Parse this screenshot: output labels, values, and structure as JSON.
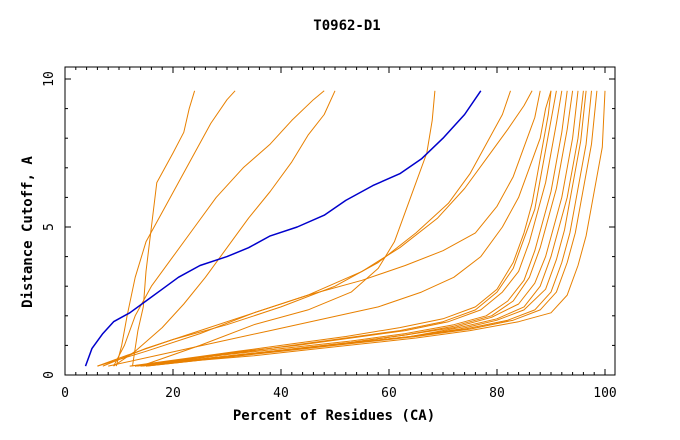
{
  "chart_data": {
    "type": "line",
    "title": "T0962-D1",
    "xlabel": "Percent of Residues (CA)",
    "ylabel": "Distance Cutoff, A",
    "xlim": [
      0,
      100
    ],
    "ylim": [
      0,
      10
    ],
    "x_ticks": [
      "0",
      "20",
      "40",
      "60",
      "80",
      "100"
    ],
    "y_ticks": [
      "0",
      "5",
      "10"
    ],
    "grid": false,
    "legend": "none",
    "colors": {
      "highlight": "#0000cc",
      "others": "#e88000"
    },
    "highlight_series": {
      "points": [
        [
          3.8,
          0.3
        ],
        [
          5,
          0.9
        ],
        [
          7,
          1.4
        ],
        [
          9,
          1.8
        ],
        [
          12,
          2.1
        ],
        [
          15,
          2.5
        ],
        [
          18,
          2.9
        ],
        [
          21,
          3.3
        ],
        [
          25,
          3.7
        ],
        [
          30,
          4.0
        ],
        [
          34,
          4.3
        ],
        [
          38,
          4.7
        ],
        [
          43,
          5.0
        ],
        [
          48,
          5.4
        ],
        [
          52,
          5.9
        ],
        [
          57,
          6.4
        ],
        [
          62,
          6.8
        ],
        [
          66,
          7.3
        ],
        [
          70,
          8.0
        ],
        [
          74,
          8.8
        ],
        [
          77,
          9.6
        ]
      ]
    },
    "series": [
      {
        "points": [
          [
            12.5,
            0.3
          ],
          [
            13.5,
            1.5
          ],
          [
            14.5,
            2.3
          ],
          [
            15,
            3.5
          ],
          [
            16,
            5.0
          ],
          [
            17,
            6.5
          ],
          [
            20,
            7.5
          ],
          [
            22,
            8.2
          ],
          [
            23,
            9.0
          ],
          [
            24,
            9.6
          ]
        ]
      },
      {
        "points": [
          [
            9.5,
            0.3
          ],
          [
            10.5,
            1.0
          ],
          [
            11.5,
            2.0
          ],
          [
            13,
            3.3
          ],
          [
            15,
            4.5
          ],
          [
            18,
            5.5
          ],
          [
            21,
            6.5
          ],
          [
            24,
            7.5
          ],
          [
            27,
            8.5
          ],
          [
            30,
            9.3
          ],
          [
            31.5,
            9.6
          ]
        ]
      },
      {
        "points": [
          [
            9,
            0.3
          ],
          [
            11,
            1.0
          ],
          [
            13,
            2.0
          ],
          [
            16,
            3.0
          ],
          [
            20,
            4.0
          ],
          [
            24,
            5.0
          ],
          [
            28,
            6.0
          ],
          [
            33,
            7.0
          ],
          [
            38,
            7.8
          ],
          [
            42,
            8.6
          ],
          [
            46,
            9.3
          ],
          [
            48,
            9.6
          ]
        ]
      },
      {
        "points": [
          [
            9,
            0.3
          ],
          [
            13,
            0.8
          ],
          [
            18,
            1.6
          ],
          [
            22,
            2.4
          ],
          [
            26,
            3.3
          ],
          [
            30,
            4.3
          ],
          [
            34,
            5.3
          ],
          [
            38,
            6.2
          ],
          [
            42,
            7.2
          ],
          [
            45,
            8.1
          ],
          [
            48,
            8.8
          ],
          [
            50,
            9.6
          ]
        ]
      },
      {
        "points": [
          [
            14,
            0.3
          ],
          [
            25,
            1.0
          ],
          [
            35,
            1.7
          ],
          [
            45,
            2.2
          ],
          [
            53,
            2.8
          ],
          [
            58,
            3.6
          ],
          [
            61,
            4.5
          ],
          [
            63,
            5.5
          ],
          [
            65,
            6.5
          ],
          [
            67,
            7.5
          ],
          [
            68,
            8.6
          ],
          [
            68.5,
            9.6
          ]
        ]
      },
      {
        "points": [
          [
            6,
            0.3
          ],
          [
            12,
            0.7
          ],
          [
            20,
            1.2
          ],
          [
            30,
            1.7
          ],
          [
            40,
            2.3
          ],
          [
            50,
            3.0
          ],
          [
            58,
            3.8
          ],
          [
            65,
            4.8
          ],
          [
            71,
            5.8
          ],
          [
            75,
            6.8
          ],
          [
            78,
            7.8
          ],
          [
            81,
            8.8
          ],
          [
            82.5,
            9.6
          ]
        ]
      },
      {
        "points": [
          [
            6,
            0.3
          ],
          [
            15,
            0.8
          ],
          [
            25,
            1.4
          ],
          [
            35,
            2.1
          ],
          [
            45,
            2.7
          ],
          [
            55,
            3.5
          ],
          [
            62,
            4.3
          ],
          [
            69,
            5.3
          ],
          [
            74,
            6.3
          ],
          [
            78,
            7.3
          ],
          [
            82,
            8.3
          ],
          [
            85,
            9.1
          ],
          [
            86.5,
            9.6
          ]
        ]
      },
      {
        "points": [
          [
            7,
            0.3
          ],
          [
            15,
            0.9
          ],
          [
            25,
            1.5
          ],
          [
            35,
            2.1
          ],
          [
            45,
            2.7
          ],
          [
            55,
            3.2
          ],
          [
            63,
            3.7
          ],
          [
            70,
            4.2
          ],
          [
            76,
            4.8
          ],
          [
            80,
            5.7
          ],
          [
            83,
            6.7
          ],
          [
            85,
            7.7
          ],
          [
            87,
            8.7
          ],
          [
            88,
            9.6
          ]
        ]
      },
      {
        "points": [
          [
            8,
            0.3
          ],
          [
            18,
            0.7
          ],
          [
            28,
            1.1
          ],
          [
            38,
            1.5
          ],
          [
            48,
            1.9
          ],
          [
            58,
            2.3
          ],
          [
            66,
            2.8
          ],
          [
            72,
            3.3
          ],
          [
            77,
            4.0
          ],
          [
            81,
            5.0
          ],
          [
            84,
            6.0
          ],
          [
            86,
            7.0
          ],
          [
            88,
            8.0
          ],
          [
            89,
            9.0
          ],
          [
            90,
            9.6
          ]
        ]
      },
      {
        "points": [
          [
            12,
            0.3
          ],
          [
            22,
            0.55
          ],
          [
            32,
            0.8
          ],
          [
            42,
            1.05
          ],
          [
            52,
            1.3
          ],
          [
            62,
            1.6
          ],
          [
            70,
            1.9
          ],
          [
            76,
            2.3
          ],
          [
            80,
            2.9
          ],
          [
            83,
            3.8
          ],
          [
            85,
            4.8
          ],
          [
            86.5,
            5.8
          ],
          [
            87.5,
            6.8
          ],
          [
            88.5,
            7.8
          ],
          [
            89.5,
            8.8
          ],
          [
            90,
            9.6
          ]
        ]
      },
      {
        "points": [
          [
            12,
            0.3
          ],
          [
            22,
            0.5
          ],
          [
            32,
            0.75
          ],
          [
            42,
            1.0
          ],
          [
            52,
            1.25
          ],
          [
            62,
            1.5
          ],
          [
            70,
            1.8
          ],
          [
            76,
            2.2
          ],
          [
            80,
            2.8
          ],
          [
            83,
            3.6
          ],
          [
            85,
            4.6
          ],
          [
            87,
            5.6
          ],
          [
            88,
            6.6
          ],
          [
            89,
            7.6
          ],
          [
            90,
            8.6
          ],
          [
            91,
            9.6
          ]
        ]
      },
      {
        "points": [
          [
            13,
            0.3
          ],
          [
            23,
            0.55
          ],
          [
            33,
            0.8
          ],
          [
            43,
            1.0
          ],
          [
            53,
            1.25
          ],
          [
            63,
            1.5
          ],
          [
            71,
            1.8
          ],
          [
            77,
            2.2
          ],
          [
            81,
            2.8
          ],
          [
            84,
            3.5
          ],
          [
            86,
            4.5
          ],
          [
            87.5,
            5.5
          ],
          [
            89,
            6.5
          ],
          [
            90,
            7.5
          ],
          [
            91,
            8.5
          ],
          [
            92,
            9.6
          ]
        ]
      },
      {
        "points": [
          [
            13,
            0.3
          ],
          [
            23,
            0.55
          ],
          [
            33,
            0.75
          ],
          [
            43,
            0.95
          ],
          [
            53,
            1.15
          ],
          [
            63,
            1.4
          ],
          [
            72,
            1.7
          ],
          [
            78,
            2.0
          ],
          [
            82,
            2.5
          ],
          [
            85,
            3.2
          ],
          [
            87,
            4.2
          ],
          [
            88.5,
            5.2
          ],
          [
            90,
            6.2
          ],
          [
            91,
            7.2
          ],
          [
            92,
            8.2
          ],
          [
            93,
            9.6
          ]
        ]
      },
      {
        "points": [
          [
            13,
            0.3
          ],
          [
            23,
            0.5
          ],
          [
            33,
            0.7
          ],
          [
            43,
            0.9
          ],
          [
            53,
            1.1
          ],
          [
            63,
            1.35
          ],
          [
            72,
            1.65
          ],
          [
            79,
            2.0
          ],
          [
            83,
            2.5
          ],
          [
            86,
            3.3
          ],
          [
            88,
            4.3
          ],
          [
            89.5,
            5.3
          ],
          [
            91,
            6.3
          ],
          [
            92,
            7.3
          ],
          [
            93,
            8.3
          ],
          [
            94,
            9.6
          ]
        ]
      },
      {
        "points": [
          [
            13,
            0.3
          ],
          [
            23,
            0.5
          ],
          [
            33,
            0.7
          ],
          [
            43,
            0.9
          ],
          [
            53,
            1.1
          ],
          [
            63,
            1.35
          ],
          [
            72,
            1.6
          ],
          [
            79,
            1.95
          ],
          [
            84,
            2.4
          ],
          [
            87,
            3.1
          ],
          [
            89,
            4.0
          ],
          [
            90.5,
            5.0
          ],
          [
            92,
            6.0
          ],
          [
            93,
            7.0
          ],
          [
            94,
            8.0
          ],
          [
            95,
            9.6
          ]
        ]
      },
      {
        "points": [
          [
            14,
            0.3
          ],
          [
            24,
            0.5
          ],
          [
            34,
            0.7
          ],
          [
            44,
            0.9
          ],
          [
            54,
            1.1
          ],
          [
            64,
            1.3
          ],
          [
            73,
            1.6
          ],
          [
            80,
            1.9
          ],
          [
            85,
            2.3
          ],
          [
            88,
            3.0
          ],
          [
            90,
            4.0
          ],
          [
            91.5,
            5.0
          ],
          [
            93,
            6.0
          ],
          [
            94,
            7.0
          ],
          [
            95,
            8.0
          ],
          [
            96,
            9.6
          ]
        ]
      },
      {
        "points": [
          [
            14,
            0.3
          ],
          [
            24,
            0.5
          ],
          [
            34,
            0.7
          ],
          [
            44,
            0.9
          ],
          [
            54,
            1.1
          ],
          [
            64,
            1.3
          ],
          [
            73,
            1.55
          ],
          [
            80,
            1.85
          ],
          [
            85,
            2.2
          ],
          [
            89,
            2.9
          ],
          [
            91,
            3.9
          ],
          [
            92.5,
            4.9
          ],
          [
            93.5,
            5.9
          ],
          [
            94.5,
            6.9
          ],
          [
            95.5,
            7.9
          ],
          [
            96.5,
            9.6
          ]
        ]
      },
      {
        "points": [
          [
            14,
            0.3
          ],
          [
            24,
            0.5
          ],
          [
            34,
            0.7
          ],
          [
            44,
            0.9
          ],
          [
            54,
            1.1
          ],
          [
            64,
            1.3
          ],
          [
            74,
            1.55
          ],
          [
            82,
            1.85
          ],
          [
            87,
            2.2
          ],
          [
            90,
            2.8
          ],
          [
            92,
            3.8
          ],
          [
            93.5,
            4.8
          ],
          [
            94.5,
            5.8
          ],
          [
            95.5,
            6.8
          ],
          [
            96.5,
            7.8
          ],
          [
            97.5,
            9.6
          ]
        ]
      },
      {
        "points": [
          [
            15,
            0.3
          ],
          [
            25,
            0.5
          ],
          [
            35,
            0.7
          ],
          [
            45,
            0.9
          ],
          [
            55,
            1.1
          ],
          [
            65,
            1.3
          ],
          [
            75,
            1.55
          ],
          [
            83,
            1.85
          ],
          [
            88,
            2.2
          ],
          [
            91,
            2.8
          ],
          [
            93,
            3.8
          ],
          [
            94.5,
            4.8
          ],
          [
            95.5,
            5.8
          ],
          [
            96.5,
            6.8
          ],
          [
            97.5,
            7.8
          ],
          [
            98.5,
            9.6
          ]
        ]
      },
      {
        "points": [
          [
            15,
            0.3
          ],
          [
            25,
            0.5
          ],
          [
            35,
            0.65
          ],
          [
            45,
            0.85
          ],
          [
            55,
            1.05
          ],
          [
            65,
            1.25
          ],
          [
            75,
            1.5
          ],
          [
            84,
            1.8
          ],
          [
            90,
            2.1
          ],
          [
            93,
            2.7
          ],
          [
            95,
            3.7
          ],
          [
            96.5,
            4.7
          ],
          [
            97.5,
            5.7
          ],
          [
            98.5,
            6.7
          ],
          [
            99.5,
            7.7
          ],
          [
            100,
            9.6
          ]
        ]
      }
    ]
  }
}
